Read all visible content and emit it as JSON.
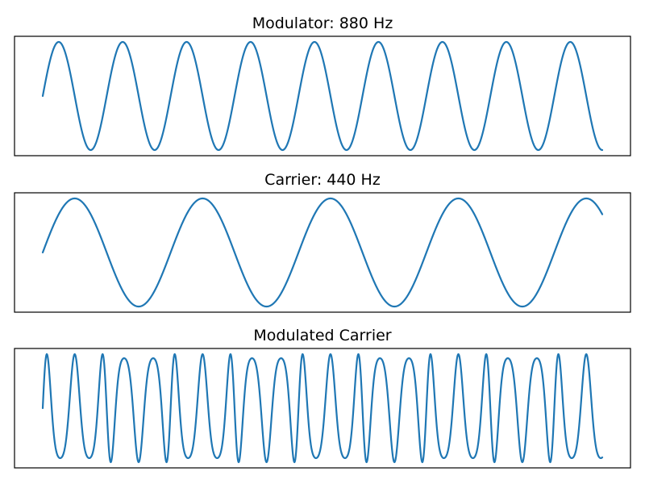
{
  "chart_data": [
    {
      "type": "line",
      "title": "Modulator: 880 Hz",
      "function": "sin",
      "frequency_hz": 880,
      "phase_cycles": 0,
      "periods_shown": 8.75,
      "ylim": [
        -1,
        1
      ],
      "axes_visible": false,
      "color": "#1f77b4"
    },
    {
      "type": "line",
      "title": "Carrier: 440 Hz",
      "function": "sin",
      "frequency_hz": 440,
      "phase_cycles": 0,
      "periods_shown": 4.375,
      "ylim": [
        -1,
        1
      ],
      "axes_visible": false,
      "color": "#1f77b4"
    },
    {
      "type": "line",
      "title": "Modulated Carrier",
      "function": "fm",
      "carrier_hz": 440,
      "modulator_hz": 880,
      "modulation_index": 3.5,
      "periods_shown": 4.375,
      "ylim": [
        -1,
        1
      ],
      "axes_visible": false,
      "color": "#1f77b4"
    }
  ]
}
